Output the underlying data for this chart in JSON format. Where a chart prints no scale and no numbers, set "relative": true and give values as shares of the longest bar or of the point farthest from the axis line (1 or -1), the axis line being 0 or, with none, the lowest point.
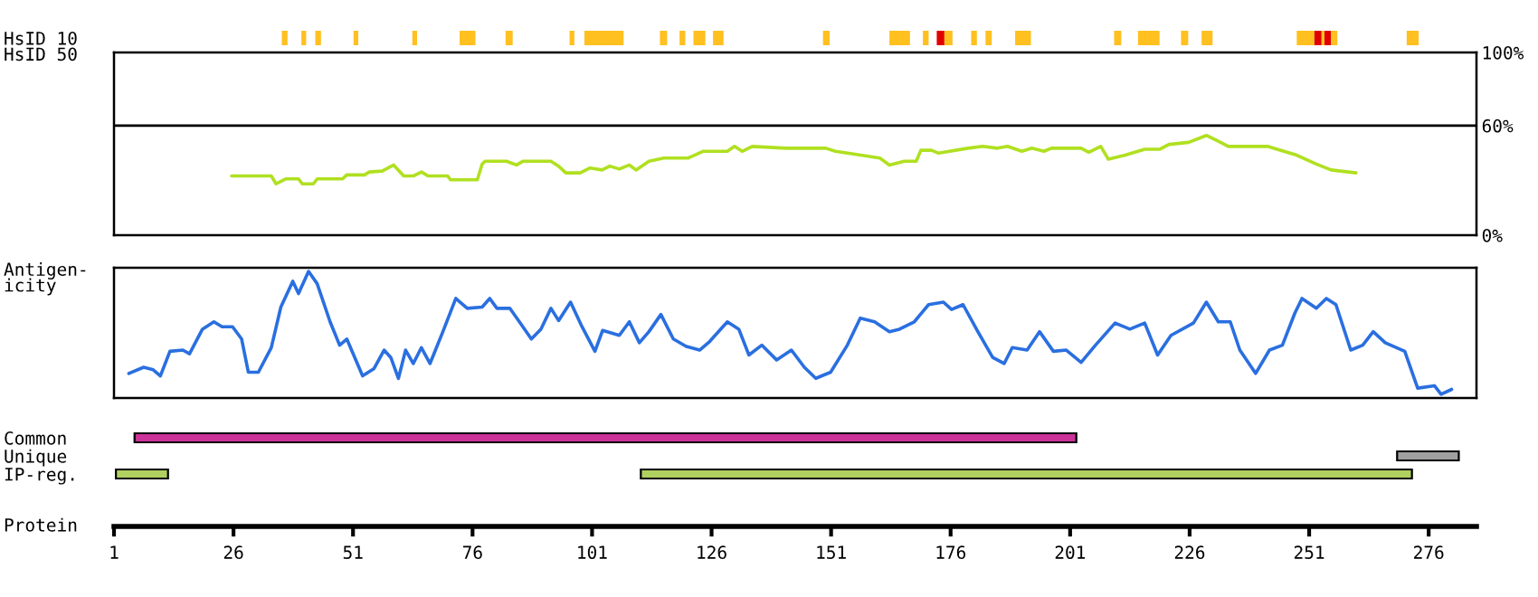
{
  "chart_data": [
    {
      "type": "bar",
      "orientation": "horizontal",
      "categories": [
        "HsID 10"
      ],
      "xlim": [
        1,
        286
      ],
      "tick_labels": "y",
      "series": [
        {
          "color": "#ffc020",
          "base": [
            36.1
          ],
          "values": [
            1.2
          ]
        },
        {
          "color": "#ffc020",
          "base": [
            40.2
          ],
          "values": [
            1.0
          ]
        },
        {
          "color": "#ffc020",
          "base": [
            43.1
          ],
          "values": [
            1.2
          ]
        },
        {
          "color": "#ffc020",
          "base": [
            51.1
          ],
          "values": [
            1.0
          ]
        },
        {
          "color": "#ffc020",
          "base": [
            63.4
          ],
          "values": [
            1.0
          ]
        },
        {
          "color": "#ffc020",
          "base": [
            73.3
          ],
          "values": [
            3.3
          ]
        },
        {
          "color": "#ffc020",
          "base": [
            82.9
          ],
          "values": [
            1.5
          ]
        },
        {
          "color": "#ffc020",
          "base": [
            96.3
          ],
          "values": [
            1.0
          ]
        },
        {
          "color": "#ffc020",
          "base": [
            99.4
          ],
          "values": [
            8.2
          ]
        },
        {
          "color": "#ffc020",
          "base": [
            115.2
          ],
          "values": [
            1.5
          ]
        },
        {
          "color": "#ffc020",
          "base": [
            119.3
          ],
          "values": [
            1.2
          ]
        },
        {
          "color": "#ffc020",
          "base": [
            122.2
          ],
          "values": [
            2.5
          ]
        },
        {
          "color": "#ffc020",
          "base": [
            126.3
          ],
          "values": [
            2.2
          ]
        },
        {
          "color": "#ffc020",
          "base": [
            149.3
          ],
          "values": [
            1.4
          ]
        },
        {
          "color": "#ffc020",
          "base": [
            163.2
          ],
          "values": [
            4.3
          ]
        },
        {
          "color": "#ffc020",
          "base": [
            170.2
          ],
          "values": [
            1.2
          ]
        },
        {
          "color": "#e00000",
          "base": [
            173.1
          ],
          "values": [
            1.6
          ]
        },
        {
          "color": "#ffc020",
          "base": [
            174.7
          ],
          "values": [
            1.7
          ]
        },
        {
          "color": "#ffc020",
          "base": [
            180.3
          ],
          "values": [
            1.2
          ]
        },
        {
          "color": "#ffc020",
          "base": [
            183.3
          ],
          "values": [
            1.3
          ]
        },
        {
          "color": "#ffc020",
          "base": [
            189.5
          ],
          "values": [
            3.3
          ]
        },
        {
          "color": "#ffc020",
          "base": [
            210.2
          ],
          "values": [
            1.5
          ]
        },
        {
          "color": "#ffc020",
          "base": [
            215.2
          ],
          "values": [
            4.5
          ]
        },
        {
          "color": "#ffc020",
          "base": [
            224.2
          ],
          "values": [
            1.5
          ]
        },
        {
          "color": "#ffc020",
          "base": [
            228.5
          ],
          "values": [
            2.3
          ]
        },
        {
          "color": "#ffc020",
          "base": [
            248.4
          ],
          "values": [
            3.7
          ]
        },
        {
          "color": "#e00000",
          "base": [
            252.1
          ],
          "values": [
            1.5
          ]
        },
        {
          "color": "#ffc020",
          "base": [
            253.6
          ],
          "values": [
            0.6
          ]
        },
        {
          "color": "#e00000",
          "base": [
            254.2
          ],
          "values": [
            1.4
          ]
        },
        {
          "color": "#ffc020",
          "base": [
            255.6
          ],
          "values": [
            1.3
          ]
        },
        {
          "color": "#ffc020",
          "base": [
            271.4
          ],
          "values": [
            2.5
          ]
        }
      ]
    },
    {
      "type": "line",
      "ylabel": "HsID 50",
      "xlim": [
        1,
        286
      ],
      "ylim": [
        0,
        100
      ],
      "yticks": [
        {
          "value": 100,
          "label": "100%"
        },
        {
          "value": 60,
          "label": "60%"
        },
        {
          "value": 0,
          "label": "0%"
        }
      ],
      "tick_labels": "y",
      "ref_lines": [
        {
          "axis": "y",
          "value": 60,
          "color": "#000000"
        }
      ],
      "series": [
        {
          "color": "#b0e020",
          "x": [
            25.6,
            33.9,
            34.9,
            36.9,
            39.6,
            40.4,
            42.7,
            43.5,
            48.8,
            49.7,
            53.4,
            54.4,
            57.1,
            59.5,
            61.6,
            63.6,
            65.3,
            66.7,
            70.8,
            71.4,
            77,
            78,
            78.6,
            83.1,
            85.2,
            86.6,
            92.4,
            94,
            95.5,
            98.5,
            100.6,
            103.1,
            104.7,
            106.7,
            108.8,
            110.2,
            112.9,
            116,
            121.1,
            124.2,
            129.3,
            130.8,
            132.4,
            134.5,
            141.7,
            149.9,
            151.9,
            156,
            161.2,
            163.2,
            166.3,
            168.8,
            169.8,
            172,
            173.5,
            179.6,
            182.7,
            185.8,
            187.9,
            190.9,
            193,
            195.5,
            197.1,
            203.3,
            204.9,
            207.4,
            209,
            212.5,
            216.6,
            219.7,
            221.7,
            225.8,
            229.5,
            232,
            234.1,
            237.1,
            242.3,
            244.3,
            248.4,
            252.5,
            255.6,
            260.8
          ],
          "values": [
            32.4,
            32.4,
            28.1,
            30.8,
            30.8,
            28.1,
            28.1,
            30.8,
            30.8,
            33,
            33,
            34.6,
            35.1,
            38.4,
            32.4,
            32.4,
            34.6,
            32.4,
            32.4,
            30.3,
            30.3,
            38.9,
            40.5,
            40.5,
            38.4,
            40.5,
            40.5,
            37.8,
            34.1,
            34.1,
            36.8,
            35.7,
            37.8,
            36.2,
            38.4,
            35.7,
            40.5,
            42.2,
            42.2,
            45.9,
            45.9,
            48.6,
            45.9,
            48.6,
            47.6,
            47.6,
            45.9,
            44.3,
            42.2,
            38.4,
            40.5,
            40.5,
            46.5,
            46.5,
            44.9,
            47.6,
            48.6,
            47.6,
            48.6,
            45.9,
            47.6,
            45.9,
            47.6,
            47.6,
            45.4,
            48.6,
            41.6,
            43.8,
            47,
            47,
            49.7,
            50.8,
            54.6,
            51.4,
            48.6,
            48.6,
            48.6,
            47,
            43.8,
            38.9,
            35.7,
            34.1
          ]
        }
      ]
    },
    {
      "type": "line",
      "relative": true,
      "ylabel": "Antigen-\nicity",
      "xlim": [
        1,
        286
      ],
      "tick_labels": false,
      "series": [
        {
          "color": "#2a6fe0",
          "x": [
            4.1,
            7.2,
            9.2,
            10.7,
            12.7,
            15.4,
            16.8,
            19.5,
            21.9,
            23.6,
            25.8,
            27.7,
            29.1,
            31.2,
            33.9,
            35.9,
            38.4,
            39.6,
            41.7,
            43.5,
            46.2,
            48.2,
            49.7,
            53,
            55.4,
            57.5,
            58.9,
            60.5,
            62,
            63.6,
            65.3,
            67.1,
            69.8,
            72.5,
            74.9,
            78,
            79.6,
            81.1,
            83.8,
            85.8,
            88.3,
            90.3,
            92.4,
            94,
            96.5,
            98.9,
            101.6,
            103.2,
            106.7,
            108.8,
            110.9,
            112.9,
            115.4,
            118,
            120.7,
            123.5,
            125.6,
            129.3,
            131.7,
            133.8,
            136.5,
            139.6,
            142.7,
            145.4,
            147.8,
            150.9,
            154.4,
            157.1,
            160.1,
            163.2,
            165.3,
            168.4,
            171.4,
            174.5,
            176.2,
            178.6,
            181.7,
            184.8,
            187.2,
            188.9,
            192,
            194.6,
            197.5,
            200.2,
            203.3,
            206.3,
            210.4,
            213.5,
            216.6,
            219.3,
            222.1,
            226.8,
            229.5,
            232,
            234.5,
            236.5,
            239.8,
            242.7,
            245.4,
            248,
            249.5,
            252.5,
            254.6,
            256.6,
            259.7,
            262.2,
            264.4,
            266.9,
            271,
            273.7,
            277.2,
            278.6,
            280.8
          ],
          "values": [
            0.17,
            0.22,
            0.2,
            0.15,
            0.35,
            0.36,
            0.33,
            0.53,
            0.59,
            0.55,
            0.55,
            0.45,
            0.18,
            0.18,
            0.38,
            0.71,
            0.92,
            0.82,
            1.0,
            0.9,
            0.59,
            0.4,
            0.45,
            0.15,
            0.21,
            0.36,
            0.3,
            0.13,
            0.36,
            0.25,
            0.38,
            0.25,
            0.51,
            0.78,
            0.7,
            0.71,
            0.78,
            0.7,
            0.7,
            0.59,
            0.45,
            0.53,
            0.7,
            0.6,
            0.75,
            0.55,
            0.35,
            0.52,
            0.48,
            0.59,
            0.42,
            0.51,
            0.65,
            0.45,
            0.39,
            0.36,
            0.43,
            0.59,
            0.53,
            0.32,
            0.4,
            0.28,
            0.36,
            0.22,
            0.13,
            0.18,
            0.4,
            0.62,
            0.59,
            0.51,
            0.53,
            0.59,
            0.73,
            0.75,
            0.69,
            0.73,
            0.51,
            0.3,
            0.25,
            0.38,
            0.36,
            0.51,
            0.35,
            0.36,
            0.26,
            0.4,
            0.58,
            0.53,
            0.58,
            0.32,
            0.48,
            0.58,
            0.75,
            0.59,
            0.59,
            0.36,
            0.17,
            0.36,
            0.4,
            0.66,
            0.78,
            0.7,
            0.78,
            0.73,
            0.36,
            0.4,
            0.51,
            0.42,
            0.35,
            0.05,
            0.07,
            0,
            0.04
          ]
        }
      ]
    },
    {
      "type": "bar",
      "orientation": "horizontal",
      "categories": [
        "Common",
        "Unique",
        "IP-reg."
      ],
      "xlabel": "Protein",
      "xlim": [
        1,
        286
      ],
      "xticks": [
        1,
        26,
        51,
        76,
        101,
        126,
        151,
        176,
        201,
        226,
        251,
        276
      ],
      "series": [
        {
          "colors": [
            "#cc3399",
            null,
            "#b0d060"
          ],
          "base": [
            5.3,
            null,
            1.4
          ],
          "values": [
            197,
            null,
            10.9
          ]
        },
        {
          "colors": [
            null,
            "#a0a0a0",
            "#b0d060"
          ],
          "base": [
            null,
            269.4,
            111.2
          ],
          "values": [
            null,
            12.9,
            161.3
          ]
        }
      ]
    }
  ]
}
